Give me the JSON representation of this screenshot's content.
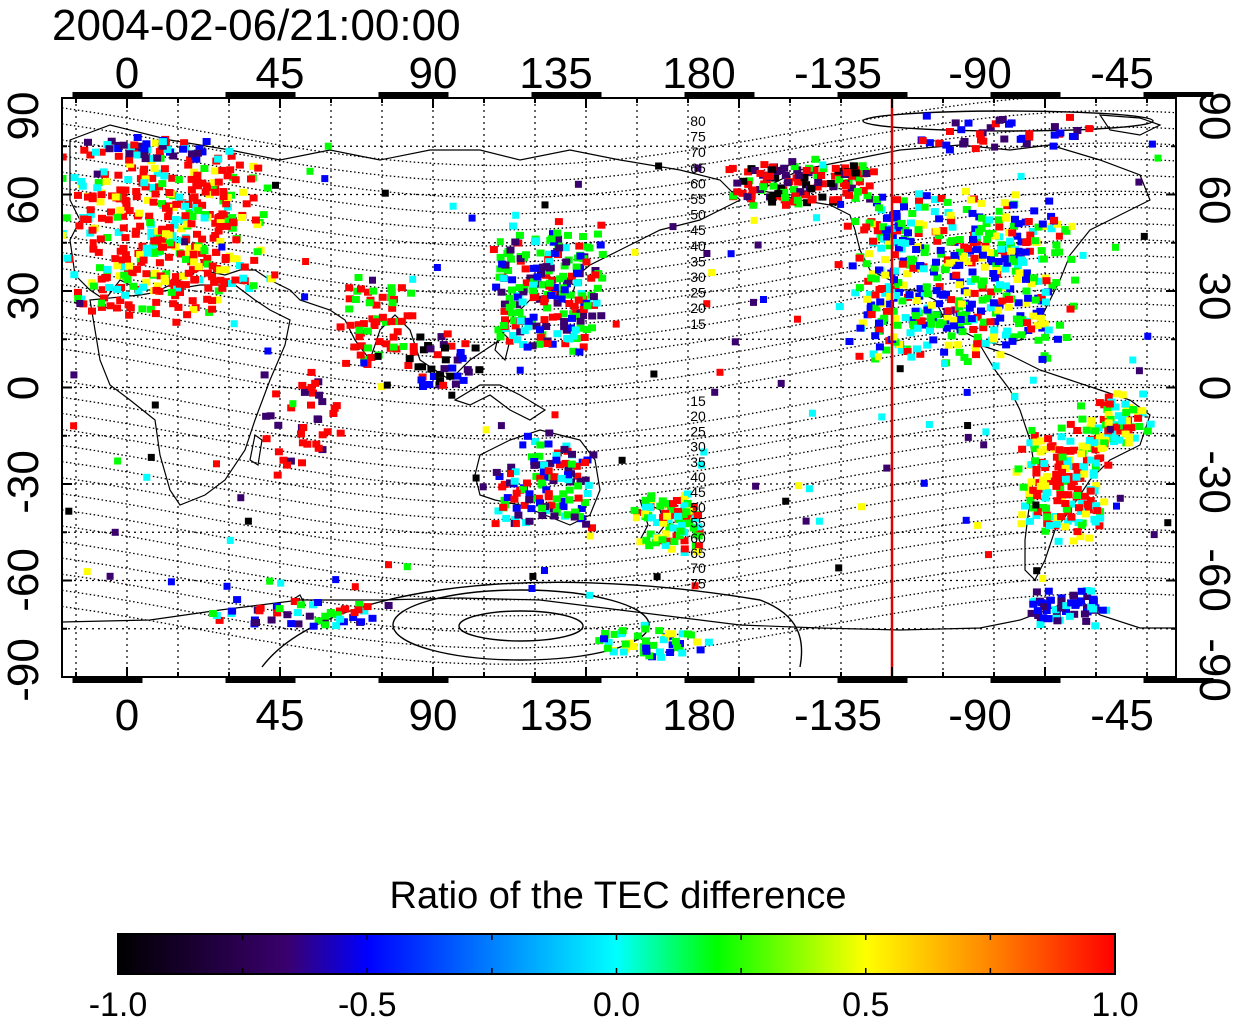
{
  "title": "2004-02-06/21:00:00",
  "map": {
    "lon_ticks": [
      "0",
      "45",
      "90",
      "135",
      "180",
      "-135",
      "-90",
      "-45"
    ],
    "lat_ticks": [
      "90",
      "60",
      "30",
      "0",
      "-30",
      "-60",
      "-90"
    ],
    "grid": "dotted, 15° spacing",
    "marker_longitude": -135,
    "marker_color": "#e00000",
    "contour_labels_north": [
      "80",
      "75",
      "70",
      "65",
      "60",
      "55",
      "50",
      "45",
      "40",
      "35",
      "30",
      "25",
      "20",
      "15"
    ],
    "contour_labels_south": [
      "15",
      "20",
      "25",
      "30",
      "35",
      "40",
      "45",
      "50",
      "55",
      "60",
      "65",
      "70",
      "75"
    ]
  },
  "colorbar": {
    "title": "Ratio of the TEC difference",
    "tick_labels": [
      "-1.0",
      "-0.5",
      "0.0",
      "0.5",
      "1.0"
    ],
    "range": [
      -1.0,
      1.0
    ],
    "colors": [
      "#000000",
      "#3a006e",
      "#0000ff",
      "#00ffff",
      "#00ff00",
      "#ffff00",
      "#ff0000"
    ]
  }
}
